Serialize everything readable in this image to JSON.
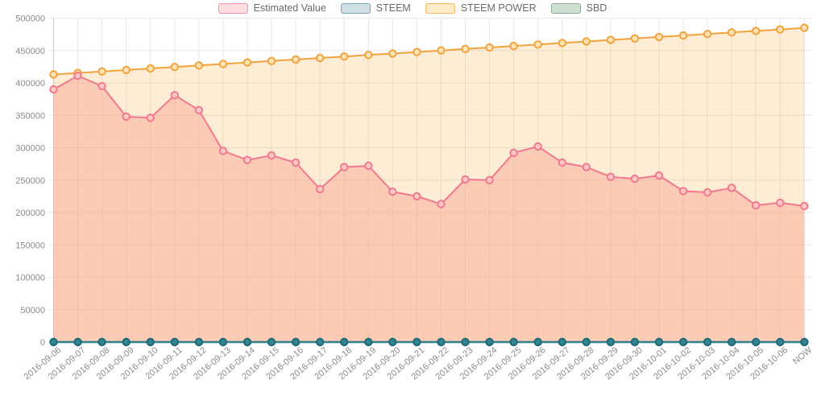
{
  "legend": [
    {
      "label": "Estimated Value",
      "fill": "#fbdde2",
      "border": "#f391ab"
    },
    {
      "label": "STEEM",
      "fill": "#cfdfe6",
      "border": "#7aa6b8"
    },
    {
      "label": "STEEM POWER",
      "fill": "#fdeac7",
      "border": "#f0b862"
    },
    {
      "label": "SBD",
      "fill": "#d0dfd4",
      "border": "#8aab94"
    }
  ],
  "chart_data": {
    "type": "area",
    "title": "",
    "xlabel": "",
    "ylabel": "",
    "legend_position": "top",
    "grid": true,
    "grid_color": "#e8e8e8",
    "axis_color": "#c9c9c9",
    "tick_color": "#8c8c8c",
    "ylim": [
      0,
      500000
    ],
    "yticks": [
      0,
      50000,
      100000,
      150000,
      200000,
      250000,
      300000,
      350000,
      400000,
      450000,
      500000
    ],
    "x": [
      "2016-09-06",
      "2016-09-07",
      "2016-09-08",
      "2016-09-09",
      "2016-09-10",
      "2016-09-11",
      "2016-09-12",
      "2016-09-13",
      "2016-09-14",
      "2016-09-15",
      "2016-09-16",
      "2016-09-17",
      "2016-09-18",
      "2016-09-19",
      "2016-09-20",
      "2016-09-21",
      "2016-09-22",
      "2016-09-23",
      "2016-09-24",
      "2016-09-25",
      "2016-09-26",
      "2016-09-27",
      "2016-09-28",
      "2016-09-29",
      "2016-09-30",
      "2016-10-01",
      "2016-10-02",
      "2016-10-03",
      "2016-10-04",
      "2016-10-05",
      "2016-10-06",
      "NOW"
    ],
    "draw_order": [
      2,
      0,
      3,
      1
    ],
    "series": [
      {
        "name": "Estimated Value",
        "color": "#f2798f",
        "fill": "rgba(250,153,135,0.4)",
        "marker_fill": "#fbc9c4",
        "lw": 2,
        "values": [
          390000,
          411000,
          395000,
          348000,
          346000,
          381000,
          358000,
          295000,
          281000,
          288000,
          277000,
          236000,
          270000,
          272000,
          232000,
          225000,
          213000,
          251000,
          250000,
          292000,
          302000,
          277000,
          270000,
          255000,
          252000,
          257000,
          233000,
          231000,
          238000,
          211000,
          215000,
          210000
        ]
      },
      {
        "name": "STEEM",
        "color": "#2f808c",
        "fill": null,
        "marker_fill": "#35838e",
        "marker_stroke": "#1d6b78",
        "lw": 2.5,
        "values": [
          0,
          0,
          0,
          0,
          0,
          0,
          0,
          0,
          0,
          0,
          0,
          0,
          0,
          0,
          0,
          0,
          0,
          0,
          0,
          0,
          0,
          0,
          0,
          0,
          0,
          0,
          0,
          0,
          0,
          0,
          0,
          0
        ]
      },
      {
        "name": "STEEM POWER",
        "color": "#f2a33c",
        "fill": "rgba(243,174,60,0.22)",
        "marker_fill": "#fce3b8",
        "lw": 2,
        "values": [
          413000,
          415300,
          417600,
          419900,
          422300,
          424600,
          426900,
          429200,
          431500,
          433800,
          436200,
          438500,
          440800,
          443100,
          445400,
          447700,
          450100,
          452400,
          454700,
          457000,
          459300,
          461600,
          464000,
          466300,
          468600,
          470900,
          473200,
          475500,
          477900,
          480200,
          482500,
          485000
        ]
      },
      {
        "name": "SBD",
        "color": "#84a98f",
        "fill": null,
        "marker_fill": "#a9c4b1",
        "lw": 2,
        "values": [
          0,
          0,
          0,
          0,
          0,
          0,
          0,
          0,
          0,
          0,
          0,
          0,
          0,
          0,
          0,
          0,
          0,
          0,
          0,
          0,
          0,
          0,
          0,
          0,
          0,
          0,
          0,
          0,
          0,
          0,
          0,
          0
        ]
      }
    ]
  }
}
